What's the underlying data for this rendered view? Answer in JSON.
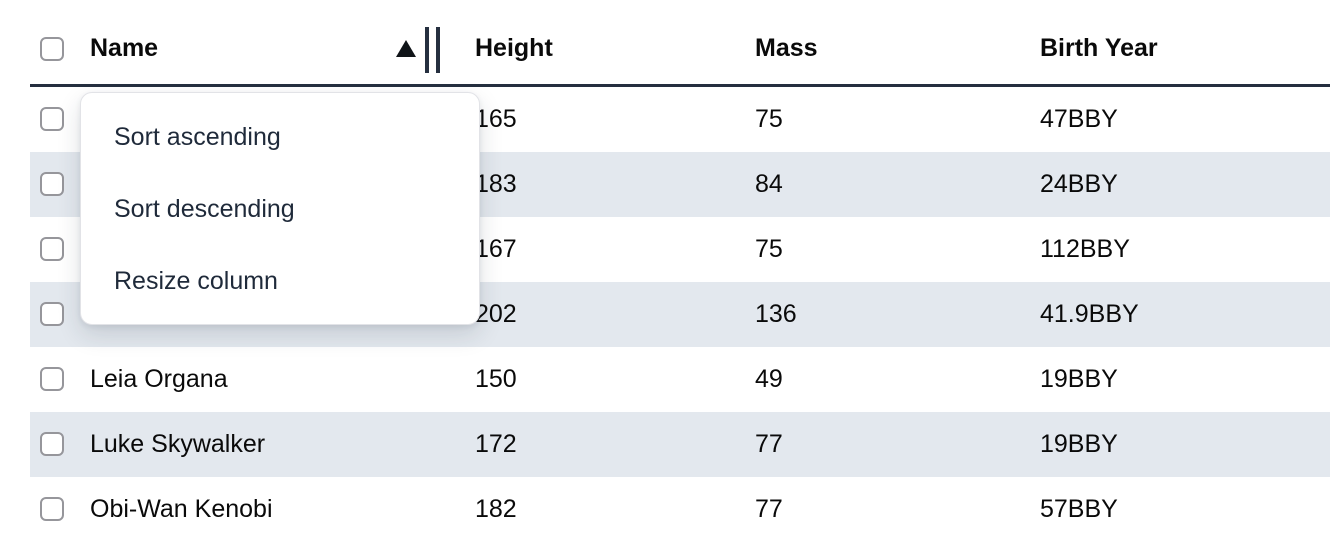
{
  "table": {
    "columns": [
      {
        "label": "Name",
        "sort": "ascending"
      },
      {
        "label": "Height"
      },
      {
        "label": "Mass"
      },
      {
        "label": "Birth Year"
      }
    ],
    "rows": [
      {
        "name": "",
        "height": "165",
        "mass": "75",
        "birth_year": "47BBY"
      },
      {
        "name": "",
        "height": "183",
        "mass": "84",
        "birth_year": "24BBY"
      },
      {
        "name": "",
        "height": "167",
        "mass": "75",
        "birth_year": "112BBY"
      },
      {
        "name": "",
        "height": "202",
        "mass": "136",
        "birth_year": "41.9BBY"
      },
      {
        "name": "Leia Organa",
        "height": "150",
        "mass": "49",
        "birth_year": "19BBY"
      },
      {
        "name": "Luke Skywalker",
        "height": "172",
        "mass": "77",
        "birth_year": "19BBY"
      },
      {
        "name": "Obi-Wan Kenobi",
        "height": "182",
        "mass": "77",
        "birth_year": "57BBY"
      }
    ]
  },
  "menu": {
    "items": [
      "Sort ascending",
      "Sort descending",
      "Resize column"
    ]
  },
  "icons": {
    "sort_indicator": "ascending-triangle",
    "resize_indicator": "double-vertical-bars"
  },
  "colors": {
    "row_stripe": "#e3e8ee",
    "header_border": "#252f3f",
    "menu_text": "#1f2a3a",
    "checkbox_border": "#96969b"
  }
}
